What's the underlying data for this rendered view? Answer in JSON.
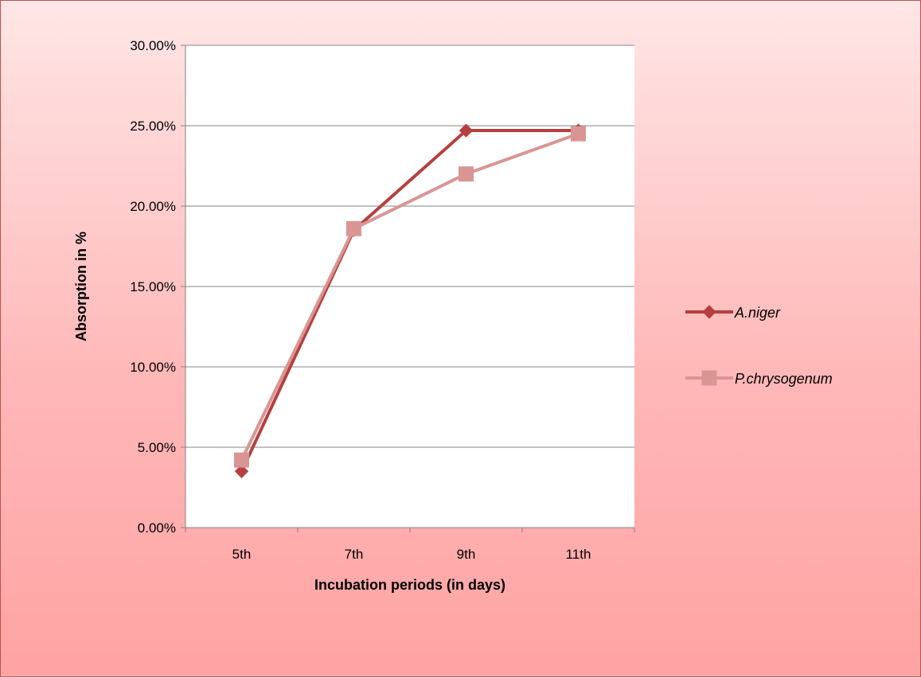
{
  "chart_data": {
    "type": "line",
    "title": "",
    "xlabel": "Incubation periods (in days)",
    "ylabel": "Absorption in %",
    "categories": [
      "5th",
      "7th",
      "9th",
      "11th"
    ],
    "y_tick_labels": [
      "0.00%",
      "5.00%",
      "10.00%",
      "15.00%",
      "20.00%",
      "25.00%",
      "30.00%"
    ],
    "ylim": [
      0,
      30
    ],
    "ytick_step": 5,
    "grid": "horizontal",
    "legend_position": "right",
    "series": [
      {
        "name": "A.niger",
        "values": [
          3.5,
          18.5,
          24.7,
          24.7
        ],
        "color": "#b5403d",
        "marker": "diamond"
      },
      {
        "name": "P.chrysogenum",
        "values": [
          4.2,
          18.6,
          22.0,
          24.5
        ],
        "color": "#d99594",
        "marker": "square"
      }
    ]
  }
}
